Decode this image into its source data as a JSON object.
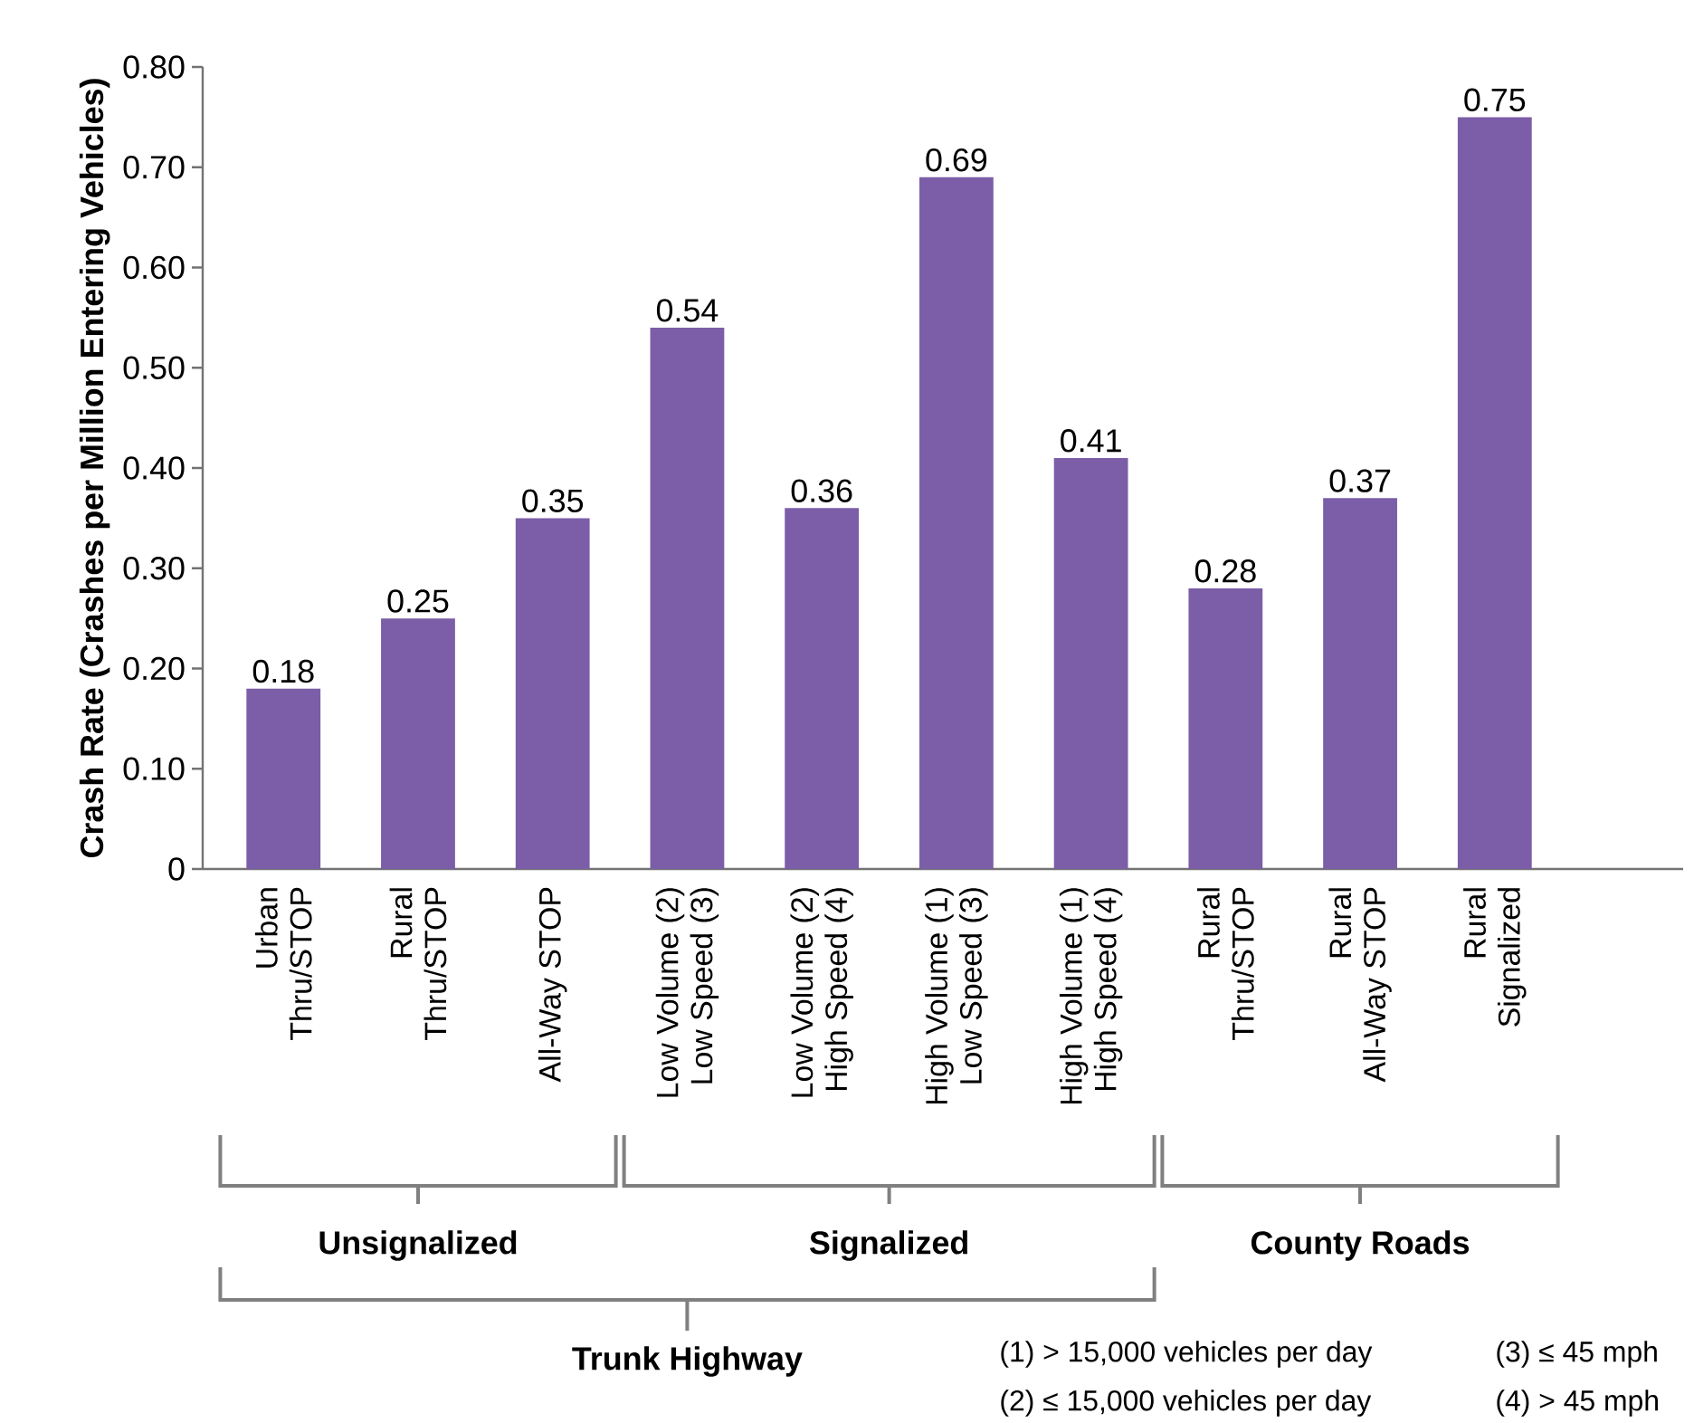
{
  "chart_data": {
    "type": "bar",
    "ylabel": "Crash Rate (Crashes per Million Entering Vehicles)",
    "categories": [
      "Urban\nThru/STOP",
      "Rural\nThru/STOP",
      "All-Way STOP",
      "Low Volume (2)\nLow Speed (3)",
      "Low Volume (2)\nHigh Speed (4)",
      "High Volume (1)\nLow Speed (3)",
      "High Volume (1)\nHigh Speed (4)",
      "Rural\nThru/STOP",
      "Rural\nAll-Way STOP",
      "Rural\nSignalized"
    ],
    "values": [
      0.18,
      0.25,
      0.35,
      0.54,
      0.36,
      0.69,
      0.41,
      0.28,
      0.37,
      0.75
    ],
    "color": "#7b5ea7",
    "data_labels": true,
    "ylim": [
      0,
      0.8
    ],
    "yticks": [
      0,
      {
        "value": 0.1,
        "label": "0.10"
      },
      {
        "value": 0.2,
        "label": "0.20"
      },
      {
        "value": 0.3,
        "label": "0.30"
      },
      {
        "value": 0.4,
        "label": "0.40"
      },
      {
        "value": 0.5,
        "label": "0.50"
      },
      {
        "value": 0.6,
        "label": "0.60"
      },
      {
        "value": 0.7,
        "label": "0.70"
      },
      {
        "value": 0.8,
        "label": "0.80"
      }
    ],
    "annotations": [
      "Unsignalized",
      "Signalized",
      "County Roads",
      "Trunk Highway",
      "(1) > 15,000 vehicles per day",
      "(3) ≤ 45 mph",
      "(2) ≤ 15,000 vehicles per day",
      "(4) > 45 mph"
    ]
  }
}
